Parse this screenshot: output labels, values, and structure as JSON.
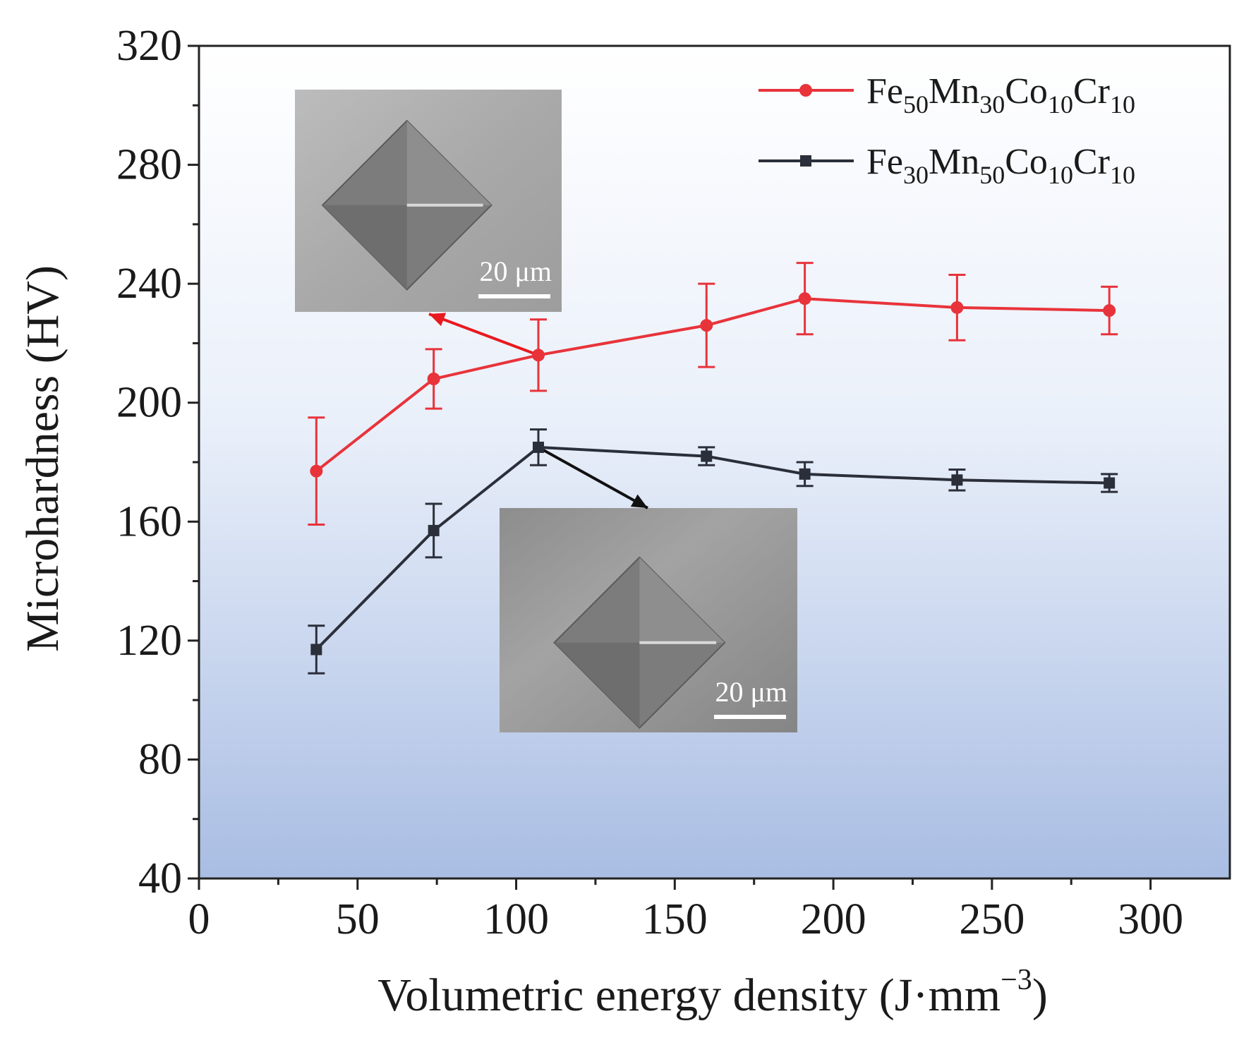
{
  "chart_data": {
    "type": "line",
    "title": "",
    "xlabel": "Volumetric energy density (J·mm",
    "xlabel_sup": "−3",
    "xlabel_close": ")",
    "ylabel": "Microhardness (HV)",
    "xlim": [
      0,
      325
    ],
    "ylim": [
      40,
      320
    ],
    "x_ticks": [
      0,
      50,
      100,
      150,
      200,
      250,
      300
    ],
    "y_ticks": [
      40,
      80,
      120,
      160,
      200,
      240,
      280,
      320
    ],
    "grid": false,
    "legend_position": "top-right",
    "background": "vertical gradient white to light blue",
    "series": [
      {
        "name_parts": [
          [
            "Fe",
            "50"
          ],
          [
            "Mn",
            "30"
          ],
          [
            "Co",
            "10"
          ],
          [
            "Cr",
            "10"
          ]
        ],
        "color": "#e8333b",
        "marker": "circle",
        "x": [
          37,
          74,
          107,
          160,
          191,
          239,
          287
        ],
        "y": [
          177,
          208,
          216,
          226,
          235,
          232,
          231
        ],
        "error": [
          18,
          10,
          12,
          14,
          12,
          11,
          8
        ]
      },
      {
        "name_parts": [
          [
            "Fe",
            "30"
          ],
          [
            "Mn",
            "50"
          ],
          [
            "Co",
            "10"
          ],
          [
            "Cr",
            "10"
          ]
        ],
        "color": "#2b2f3a",
        "marker": "square",
        "x": [
          37,
          74,
          107,
          160,
          191,
          239,
          287
        ],
        "y": [
          117,
          157,
          185,
          182,
          176,
          174,
          173
        ],
        "error": [
          8,
          9,
          6,
          3,
          4,
          3.5,
          3
        ]
      }
    ],
    "insets": [
      {
        "label": "indentation-micrograph",
        "scale_text": "20 μm",
        "points_to_series": 0,
        "points_to_index": 2
      },
      {
        "label": "indentation-micrograph",
        "scale_text": "20 μm",
        "points_to_series": 1,
        "points_to_index": 2
      }
    ],
    "colors": {
      "red_series": "#e8333b",
      "black_series": "#2b2f3a",
      "arrow_red": "#e8191f",
      "arrow_black": "#111111"
    }
  }
}
